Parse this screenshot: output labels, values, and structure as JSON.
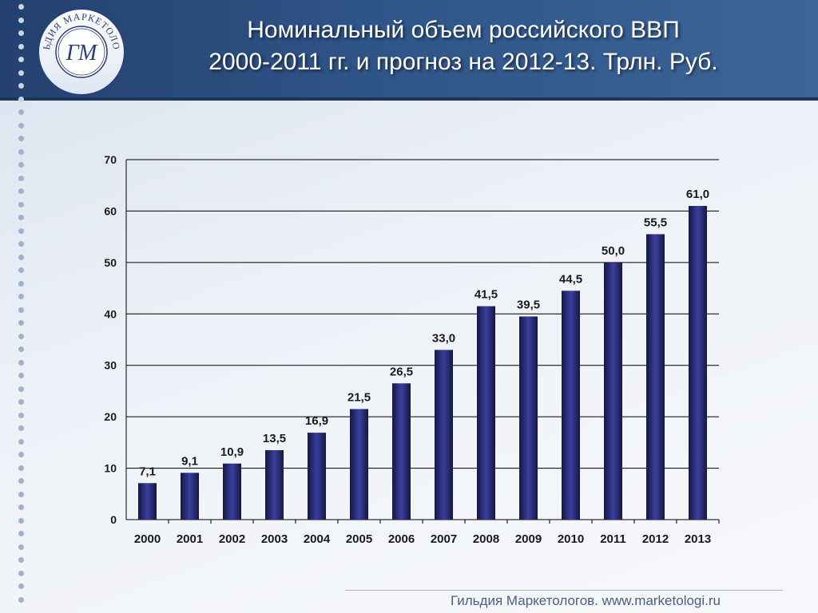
{
  "header": {
    "title_line1": "Номинальный объем российского ВВП",
    "title_line2": "2000-2011 гг. и прогноз на 2012-13. Трлн. Руб."
  },
  "logo": {
    "ring_text": "ГИЛЬДИЯ МАРКЕТОЛОГОВ",
    "monogram": "ГМ"
  },
  "footer": {
    "text": "Гильдия Маркетологов. www.marketologi.ru"
  },
  "colors": {
    "bar_dark": "#141742",
    "bar_light": "#3a3f9e",
    "header": "#2f5487",
    "accent_dots": "#9fb1cf"
  },
  "chart_data": {
    "type": "bar",
    "title": "",
    "xlabel": "",
    "ylabel": "",
    "categories": [
      "2000",
      "2001",
      "2002",
      "2003",
      "2004",
      "2005",
      "2006",
      "2007",
      "2008",
      "2009",
      "2010",
      "2011",
      "2012",
      "2013"
    ],
    "values": [
      7.1,
      9.1,
      10.9,
      13.5,
      16.9,
      21.5,
      26.5,
      33.0,
      41.5,
      39.5,
      44.5,
      50.0,
      55.5,
      61.0
    ],
    "value_labels": [
      "7,1",
      "9,1",
      "10,9",
      "13,5",
      "16,9",
      "21,5",
      "26,5",
      "33,0",
      "41,5",
      "39,5",
      "44,5",
      "50,0",
      "55,5",
      "61,0"
    ],
    "ylim": [
      0,
      70
    ],
    "yticks": [
      0,
      10,
      20,
      30,
      40,
      50,
      60,
      70
    ],
    "grid": true,
    "legend": "none"
  }
}
